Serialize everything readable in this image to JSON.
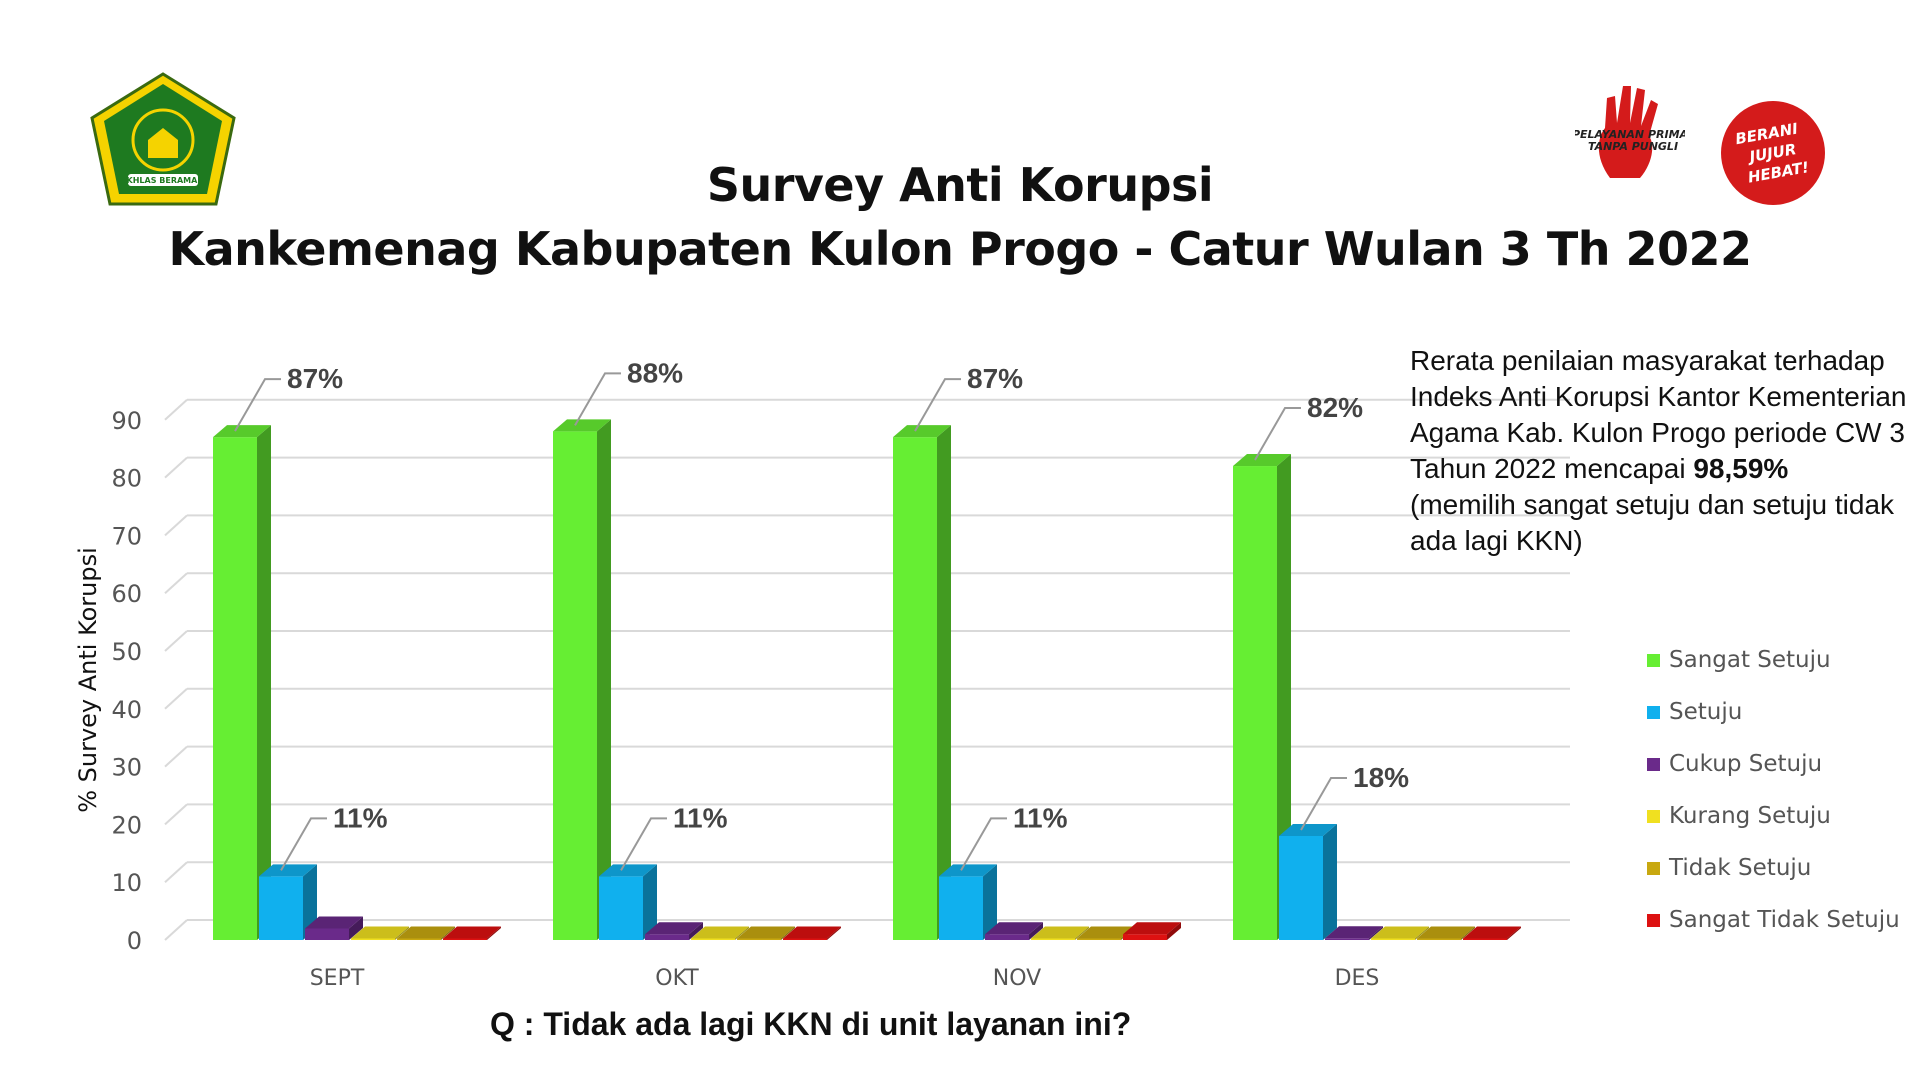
{
  "header": {
    "title_line1": "Survey Anti Korupsi",
    "title_line2": "Kankemenag Kabupaten Kulon Progo - Catur Wulan 3 Th 2022",
    "logo_left_text": "IKHLAS BERAMAL",
    "logo_right1_text_1": "PELAYANAN PRIMA",
    "logo_right1_text_2": "TANPA PUNGLI",
    "logo_right2_text_1": "BERANI",
    "logo_right2_text_2": "JUJUR",
    "logo_right2_text_3": "HEBAT!"
  },
  "note": {
    "text_before": "Rerata penilaian masyarakat terhadap Indeks Anti Korupsi Kantor Kementerian Agama Kab. Kulon Progo periode CW 3 Tahun 2022 mencapai ",
    "highlight": "98,59%",
    "text_after": "(memilih sangat setuju dan setuju tidak ada lagi KKN)"
  },
  "question": "Q :  Tidak ada lagi KKN di unit layanan ini?",
  "chart_data": {
    "type": "bar",
    "title": "",
    "xlabel": "",
    "ylabel": "% Survey Anti Korupsi",
    "ylim": [
      0,
      90
    ],
    "yticks": [
      0,
      10,
      20,
      30,
      40,
      50,
      60,
      70,
      80,
      90
    ],
    "grid": true,
    "legend_position": "right",
    "categories": [
      "SEPT",
      "OKT",
      "NOV",
      "DES"
    ],
    "series": [
      {
        "name": "Sangat Setuju",
        "color": "#66ee33",
        "values": [
          87,
          88,
          87,
          82
        ],
        "labels": [
          "87%",
          "88%",
          "87%",
          "82%"
        ]
      },
      {
        "name": "Setuju",
        "color": "#10b0ee",
        "values": [
          11,
          11,
          11,
          18
        ],
        "labels": [
          "11%",
          "11%",
          "11%",
          "18%"
        ]
      },
      {
        "name": "Cukup Setuju",
        "color": "#6a2a8a",
        "values": [
          2,
          1,
          1,
          0.3
        ],
        "labels": [
          "",
          "",
          "",
          ""
        ]
      },
      {
        "name": "Kurang Setuju",
        "color": "#f0e020",
        "values": [
          0.2,
          0.2,
          0.2,
          0.2
        ],
        "labels": [
          "",
          "",
          "",
          ""
        ]
      },
      {
        "name": "Tidak Setuju",
        "color": "#c8a810",
        "values": [
          0.2,
          0.2,
          0.2,
          0.2
        ],
        "labels": [
          "",
          "",
          "",
          ""
        ]
      },
      {
        "name": "Sangat Tidak Setuju",
        "color": "#dd1111",
        "values": [
          0.2,
          0.2,
          1,
          0.2
        ],
        "labels": [
          "",
          "",
          "",
          ""
        ]
      }
    ]
  }
}
